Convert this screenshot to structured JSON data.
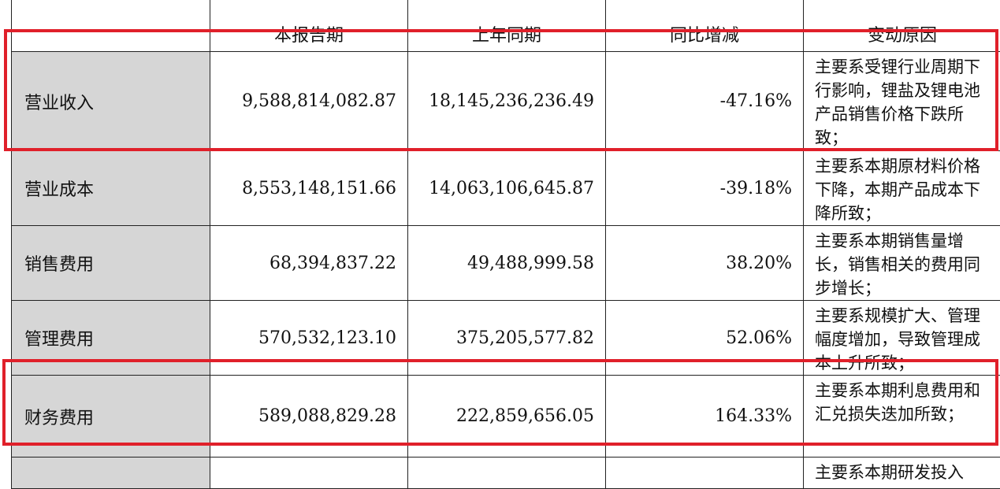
{
  "table": {
    "headers": [
      "",
      "本报告期",
      "上年同期",
      "同比增减",
      "变动原因"
    ],
    "rows": [
      {
        "label": "营业收入",
        "current": "9,588,814,082.87",
        "previous": "18,145,236,236.49",
        "change": "-47.16%",
        "reason": "主要系受锂行业周期下行影响，锂盐及锂电池产品销售价格下跌所致；"
      },
      {
        "label": "营业成本",
        "current": "8,553,148,151.66",
        "previous": "14,063,106,645.87",
        "change": "-39.18%",
        "reason": "主要系本期原材料价格下降，本期产品成本下降所致；"
      },
      {
        "label": "销售费用",
        "current": "68,394,837.22",
        "previous": "49,488,999.58",
        "change": "38.20%",
        "reason": "主要系本期销售量增长，销售相关的费用同步增长；"
      },
      {
        "label": "管理费用",
        "current": "570,532,123.10",
        "previous": "375,205,577.82",
        "change": "52.06%",
        "reason": "主要系规模扩大、管理幅度增加，导致管理成本上升所致；"
      },
      {
        "label": "财务费用",
        "current": "589,088,829.28",
        "previous": "222,859,656.05",
        "change": "164.33%",
        "reason": "主要系本期利息费用和汇兑损失迭加所致；"
      },
      {
        "label": "",
        "current": "",
        "previous": "",
        "change": "",
        "reason": "主要系本期研发投入"
      }
    ]
  },
  "highlight_color": "#e0202a"
}
